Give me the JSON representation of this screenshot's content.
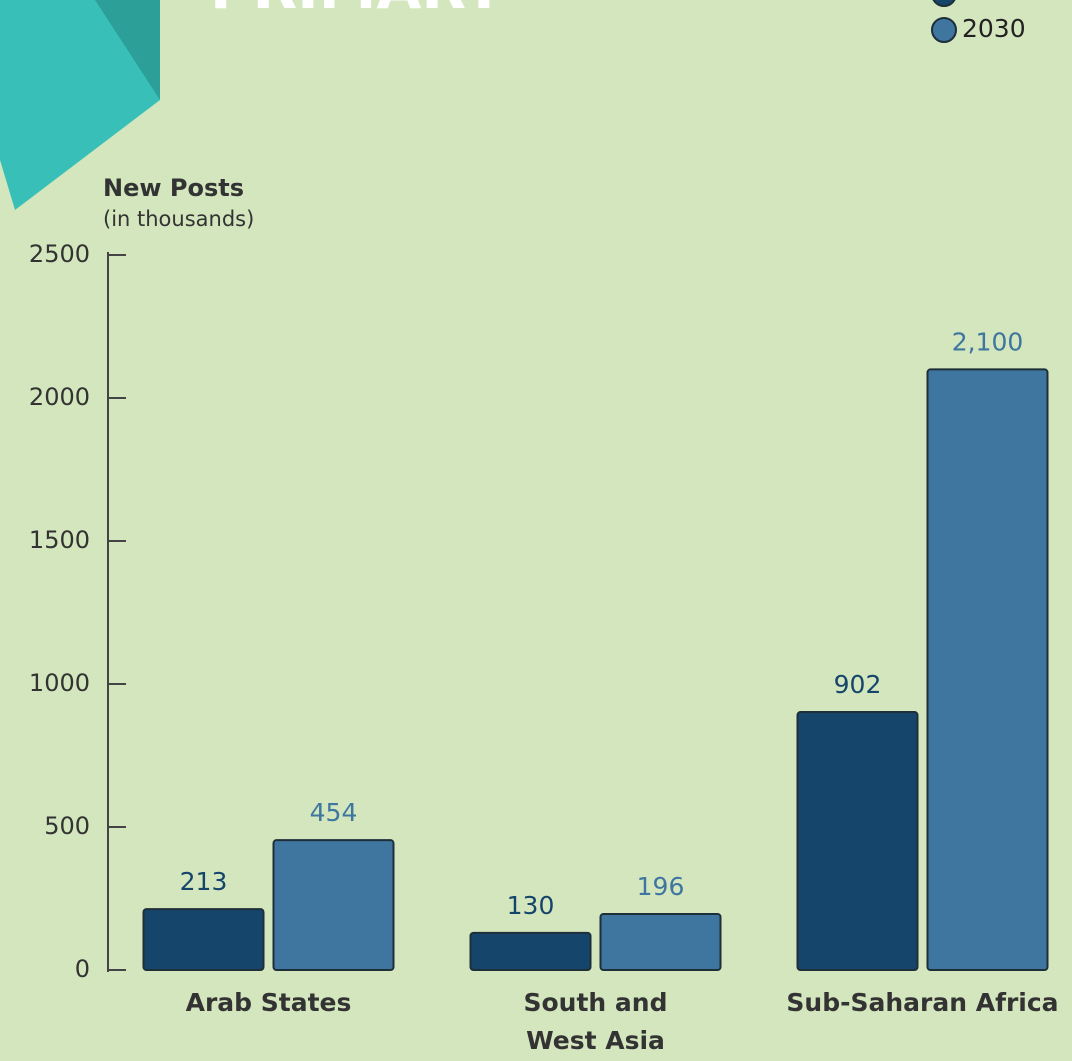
{
  "chart_data": {
    "type": "bar",
    "title": "PRIMARY",
    "y_axis_title": "New Posts",
    "y_axis_subtitle": "(in thousands)",
    "categories": [
      "Arab States",
      "South and\nWest Asia",
      "Sub-Saharan Africa"
    ],
    "series": [
      {
        "color": "#15456b",
        "values": [
          213,
          130,
          902
        ]
      },
      {
        "name": "2030",
        "color": "#3e76a0",
        "values": [
          454,
          196,
          2100
        ],
        "value_labels": [
          "454",
          "196",
          "2,100"
        ]
      }
    ],
    "ylim": [
      0,
      2500
    ],
    "yticks": [
      0,
      500,
      1000,
      1500,
      2000,
      2500
    ]
  }
}
